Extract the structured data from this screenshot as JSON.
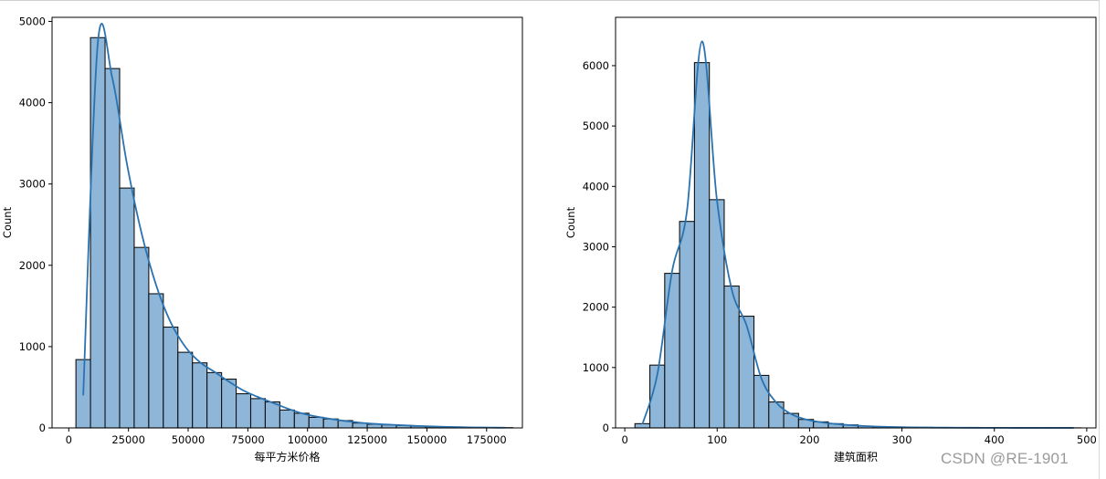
{
  "chart_data": [
    {
      "type": "bar",
      "title": "",
      "xlabel": "每平方米价格",
      "ylabel": "Count",
      "kde": true,
      "bins": 30,
      "bin_start": 3000,
      "bin_width": 6100,
      "values": [
        840,
        4800,
        4420,
        2950,
        2220,
        1650,
        1240,
        930,
        800,
        680,
        600,
        420,
        360,
        320,
        220,
        180,
        130,
        110,
        90,
        60,
        45,
        38,
        30,
        22,
        15,
        10,
        7,
        5,
        4,
        3
      ],
      "kde_values": [
        400,
        4730,
        4300,
        3250,
        2400,
        1760,
        1300,
        1000,
        810,
        690,
        570,
        460,
        380,
        310,
        240,
        180,
        140,
        110,
        85,
        65,
        50,
        40,
        32,
        24,
        18,
        13,
        9,
        6,
        4,
        3
      ],
      "xlim": [
        -7000,
        190000
      ],
      "ylim": [
        0,
        5050
      ],
      "xticks": [
        0,
        25000,
        50000,
        75000,
        100000,
        125000,
        150000,
        175000
      ],
      "yticks": [
        0,
        1000,
        2000,
        3000,
        4000,
        5000
      ],
      "grid": false,
      "bar_color": "#8db6d8",
      "line_color": "#2b73b0"
    },
    {
      "type": "bar",
      "title": "",
      "xlabel": "建筑面积",
      "ylabel": "Count",
      "kde": true,
      "bins": 30,
      "bin_start": 11,
      "bin_width": 16.1,
      "values": [
        70,
        1040,
        2560,
        3420,
        6050,
        3780,
        2350,
        1850,
        870,
        430,
        240,
        140,
        100,
        70,
        50,
        30,
        20,
        15,
        10,
        8,
        6,
        4,
        3,
        2,
        2,
        1,
        1,
        1,
        1,
        1
      ],
      "kde_values": [
        60,
        880,
        2600,
        3600,
        6400,
        3800,
        2300,
        1700,
        820,
        420,
        230,
        140,
        95,
        65,
        45,
        30,
        20,
        14,
        10,
        7,
        5,
        4,
        3,
        2,
        2,
        1,
        1,
        1,
        1,
        1
      ],
      "xlim": [
        -10,
        510
      ],
      "ylim": [
        0,
        6800
      ],
      "xticks": [
        0,
        100,
        200,
        300,
        400,
        500
      ],
      "yticks": [
        0,
        1000,
        2000,
        3000,
        4000,
        5000,
        6000
      ],
      "grid": false,
      "bar_color": "#8db6d8",
      "line_color": "#2b73b0"
    }
  ],
  "watermark": "CSDN @RE-1901"
}
